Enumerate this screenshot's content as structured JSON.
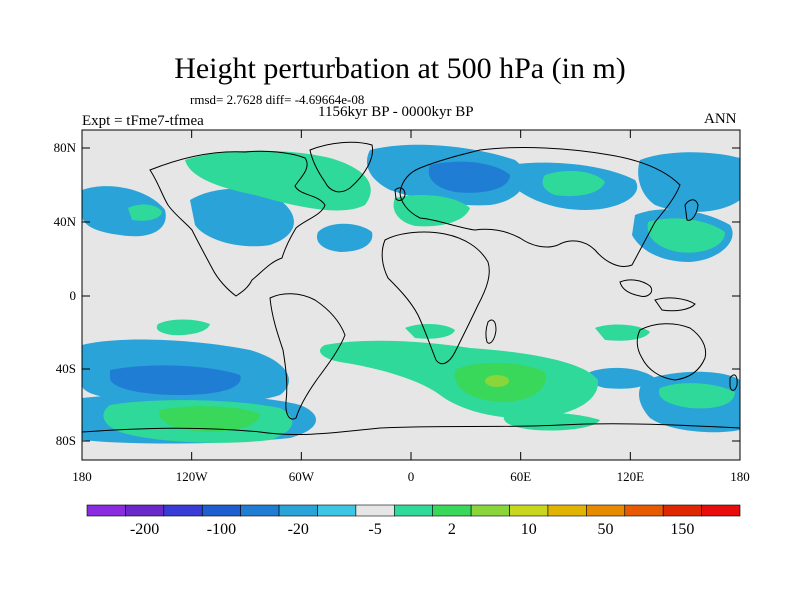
{
  "title": "Height perturbation at 500 hPa (in m)",
  "stats": "rmsd= 2.7628  diff= -4.69664e-08",
  "period": "1156kyr BP - 0000kyr BP",
  "experiment": "Expt = tFme7-tfmea",
  "season": "ANN",
  "lat_ticks": [
    "80N",
    "40N",
    "0",
    "40S",
    "80S"
  ],
  "lon_ticks": [
    "180",
    "120W",
    "60W",
    "0",
    "60E",
    "120E",
    "180"
  ],
  "colorbar": {
    "labels": [
      "-200",
      "-100",
      "-20",
      "-5",
      "2",
      "10",
      "50",
      "150"
    ],
    "colors": [
      "#8a2be2",
      "#6a28c8",
      "#3a3ad6",
      "#1e5fd0",
      "#1f7ed4",
      "#2aa3d8",
      "#3cc6e4",
      "#e6e6e6",
      "#2fd99a",
      "#3ad85a",
      "#8ad63a",
      "#c8d61e",
      "#e0b400",
      "#e68a00",
      "#e85a00",
      "#e02800",
      "#e80c0c"
    ]
  },
  "field": {
    "negative_color": "#2aa3d8",
    "negative_strong_color": "#1f7ed4",
    "positive_color": "#2fd99a",
    "positive_strong_color": "#3ad85a",
    "positive_peak_color": "#8ad63a",
    "background_color": "#e6e6e6"
  }
}
